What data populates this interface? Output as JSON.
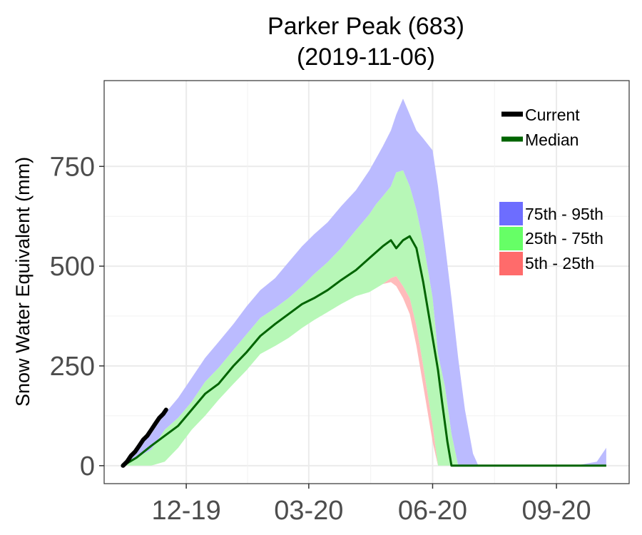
{
  "chart_data": {
    "type": "area",
    "title": "Parker Peak (683)",
    "subtitle": "(2019-11-06)",
    "xlabel": "",
    "ylabel": "Snow Water Equivalent (mm)",
    "x_tick_labels": [
      "12-19",
      "03-20",
      "06-20",
      "09-20"
    ],
    "x_tick_dates": [
      "2019-12-01",
      "2020-03-01",
      "2020-06-01",
      "2020-09-01"
    ],
    "xlim": [
      "2019-10-01",
      "2020-10-25"
    ],
    "y_ticks": [
      0,
      250,
      500,
      750
    ],
    "ylim": [
      -45,
      965
    ],
    "grid": true,
    "legend_lines": [
      "Current",
      "Median"
    ],
    "legend_bands": [
      "75th - 95th",
      "25th - 75th",
      "5th - 25th"
    ],
    "colors": {
      "p95_band": "#bbbbff",
      "p75_band": "#b7f7b7",
      "p25_band": "#ffbbbb",
      "median": "#006400",
      "current": "#000000",
      "legend_p95": "#6d6dff",
      "legend_p75": "#66ff66",
      "legend_p25": "#ff6b6b"
    },
    "bands": {
      "x": [
        "2019-10-15",
        "2019-10-25",
        "2019-11-05",
        "2019-11-15",
        "2019-11-25",
        "2019-12-05",
        "2019-12-15",
        "2019-12-25",
        "2020-01-05",
        "2020-01-15",
        "2020-01-25",
        "2020-02-05",
        "2020-02-15",
        "2020-02-25",
        "2020-03-05",
        "2020-03-15",
        "2020-03-25",
        "2020-04-05",
        "2020-04-15",
        "2020-04-20",
        "2020-04-25",
        "2020-05-01",
        "2020-05-05",
        "2020-05-10",
        "2020-05-15",
        "2020-05-20",
        "2020-05-25",
        "2020-06-01",
        "2020-06-05",
        "2020-06-10",
        "2020-06-15",
        "2020-06-20",
        "2020-06-25",
        "2020-07-01",
        "2020-07-05",
        "2020-07-10",
        "2020-07-15",
        "2020-07-20",
        "2020-07-25",
        "2020-08-01",
        "2020-08-15",
        "2020-09-01",
        "2020-09-15",
        "2020-10-01",
        "2020-10-05",
        "2020-10-08"
      ],
      "p5": [
        0,
        0,
        0,
        10,
        45,
        90,
        125,
        165,
        205,
        240,
        280,
        300,
        320,
        345,
        365,
        385,
        405,
        425,
        435,
        445,
        455,
        460,
        450,
        420,
        380,
        300,
        200,
        60,
        0,
        0,
        0,
        0,
        0,
        0,
        0,
        0,
        0,
        0,
        0,
        0,
        0,
        0,
        0,
        0,
        0,
        0
      ],
      "p25": [
        0,
        0,
        0,
        10,
        45,
        90,
        125,
        165,
        205,
        240,
        280,
        300,
        320,
        345,
        365,
        385,
        405,
        425,
        435,
        445,
        455,
        470,
        475,
        450,
        420,
        350,
        250,
        100,
        0,
        0,
        0,
        0,
        0,
        0,
        0,
        0,
        0,
        0,
        0,
        0,
        0,
        0,
        0,
        0,
        0,
        0
      ],
      "p75": [
        0,
        20,
        40,
        90,
        120,
        160,
        210,
        245,
        290,
        330,
        370,
        395,
        420,
        450,
        480,
        510,
        545,
        590,
        630,
        655,
        675,
        700,
        735,
        740,
        700,
        640,
        560,
        420,
        280,
        200,
        80,
        0,
        0,
        0,
        0,
        0,
        0,
        0,
        0,
        0,
        0,
        0,
        0,
        0,
        0,
        0
      ],
      "p95": [
        0,
        40,
        80,
        130,
        170,
        220,
        270,
        310,
        355,
        400,
        440,
        470,
        510,
        550,
        580,
        610,
        650,
        690,
        740,
        770,
        800,
        840,
        880,
        920,
        880,
        840,
        820,
        790,
        700,
        560,
        420,
        270,
        140,
        30,
        0,
        0,
        0,
        0,
        0,
        0,
        0,
        0,
        0,
        10,
        30,
        45
      ]
    },
    "median": {
      "x": [
        "2019-10-15",
        "2019-10-25",
        "2019-11-05",
        "2019-11-15",
        "2019-11-25",
        "2019-12-05",
        "2019-12-15",
        "2019-12-25",
        "2020-01-05",
        "2020-01-15",
        "2020-01-25",
        "2020-02-05",
        "2020-02-15",
        "2020-02-25",
        "2020-03-05",
        "2020-03-15",
        "2020-03-25",
        "2020-04-05",
        "2020-04-15",
        "2020-04-25",
        "2020-05-01",
        "2020-05-05",
        "2020-05-10",
        "2020-05-15",
        "2020-05-20",
        "2020-05-25",
        "2020-06-01",
        "2020-06-05",
        "2020-06-08",
        "2020-06-12",
        "2020-06-15",
        "2020-06-20",
        "2020-06-25",
        "2020-07-01",
        "2020-07-15",
        "2020-08-01",
        "2020-09-01",
        "2020-10-08"
      ],
      "y": [
        0,
        20,
        50,
        75,
        100,
        140,
        180,
        205,
        250,
        285,
        325,
        355,
        380,
        405,
        420,
        440,
        465,
        490,
        520,
        550,
        565,
        545,
        565,
        575,
        545,
        460,
        320,
        240,
        160,
        60,
        0,
        0,
        0,
        0,
        0,
        0,
        0,
        0
      ]
    },
    "current": {
      "x": [
        "2019-10-15",
        "2019-10-18",
        "2019-10-21",
        "2019-10-24",
        "2019-10-27",
        "2019-10-30",
        "2019-11-02",
        "2019-11-05",
        "2019-11-08",
        "2019-11-11",
        "2019-11-14",
        "2019-11-16"
      ],
      "y": [
        0,
        10,
        25,
        35,
        50,
        65,
        75,
        90,
        105,
        120,
        130,
        140
      ]
    }
  }
}
